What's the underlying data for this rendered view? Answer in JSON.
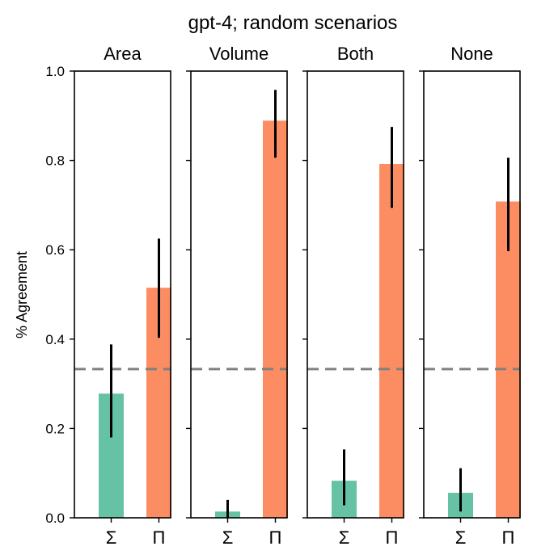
{
  "chart_data": {
    "type": "bar",
    "title": "gpt-4; random scenarios",
    "ylabel": "% Agreement",
    "ylim": [
      0,
      1.0
    ],
    "yticks": [
      0.0,
      0.2,
      0.4,
      0.6,
      0.8,
      1.0
    ],
    "ytick_labels": [
      "0.0",
      "0.2",
      "0.4",
      "0.6",
      "0.8",
      "1.0"
    ],
    "categories": [
      "Σ",
      "Π"
    ],
    "colors": {
      "Σ": "#66c2a5",
      "Π": "#fc8d62"
    },
    "chance_line": 0.333,
    "chance_line_color": "#808080",
    "panels": [
      {
        "title": "Area",
        "values": [
          0.278,
          0.515
        ],
        "error_low": [
          0.18,
          0.403
        ],
        "error_high": [
          0.388,
          0.625
        ]
      },
      {
        "title": "Volume",
        "values": [
          0.014,
          0.889
        ],
        "error_low": [
          0.0,
          0.806
        ],
        "error_high": [
          0.04,
          0.958
        ]
      },
      {
        "title": "Both",
        "values": [
          0.083,
          0.792
        ],
        "error_low": [
          0.028,
          0.694
        ],
        "error_high": [
          0.153,
          0.875
        ]
      },
      {
        "title": "None",
        "values": [
          0.056,
          0.708
        ],
        "error_low": [
          0.014,
          0.597
        ],
        "error_high": [
          0.111,
          0.806
        ]
      }
    ]
  }
}
